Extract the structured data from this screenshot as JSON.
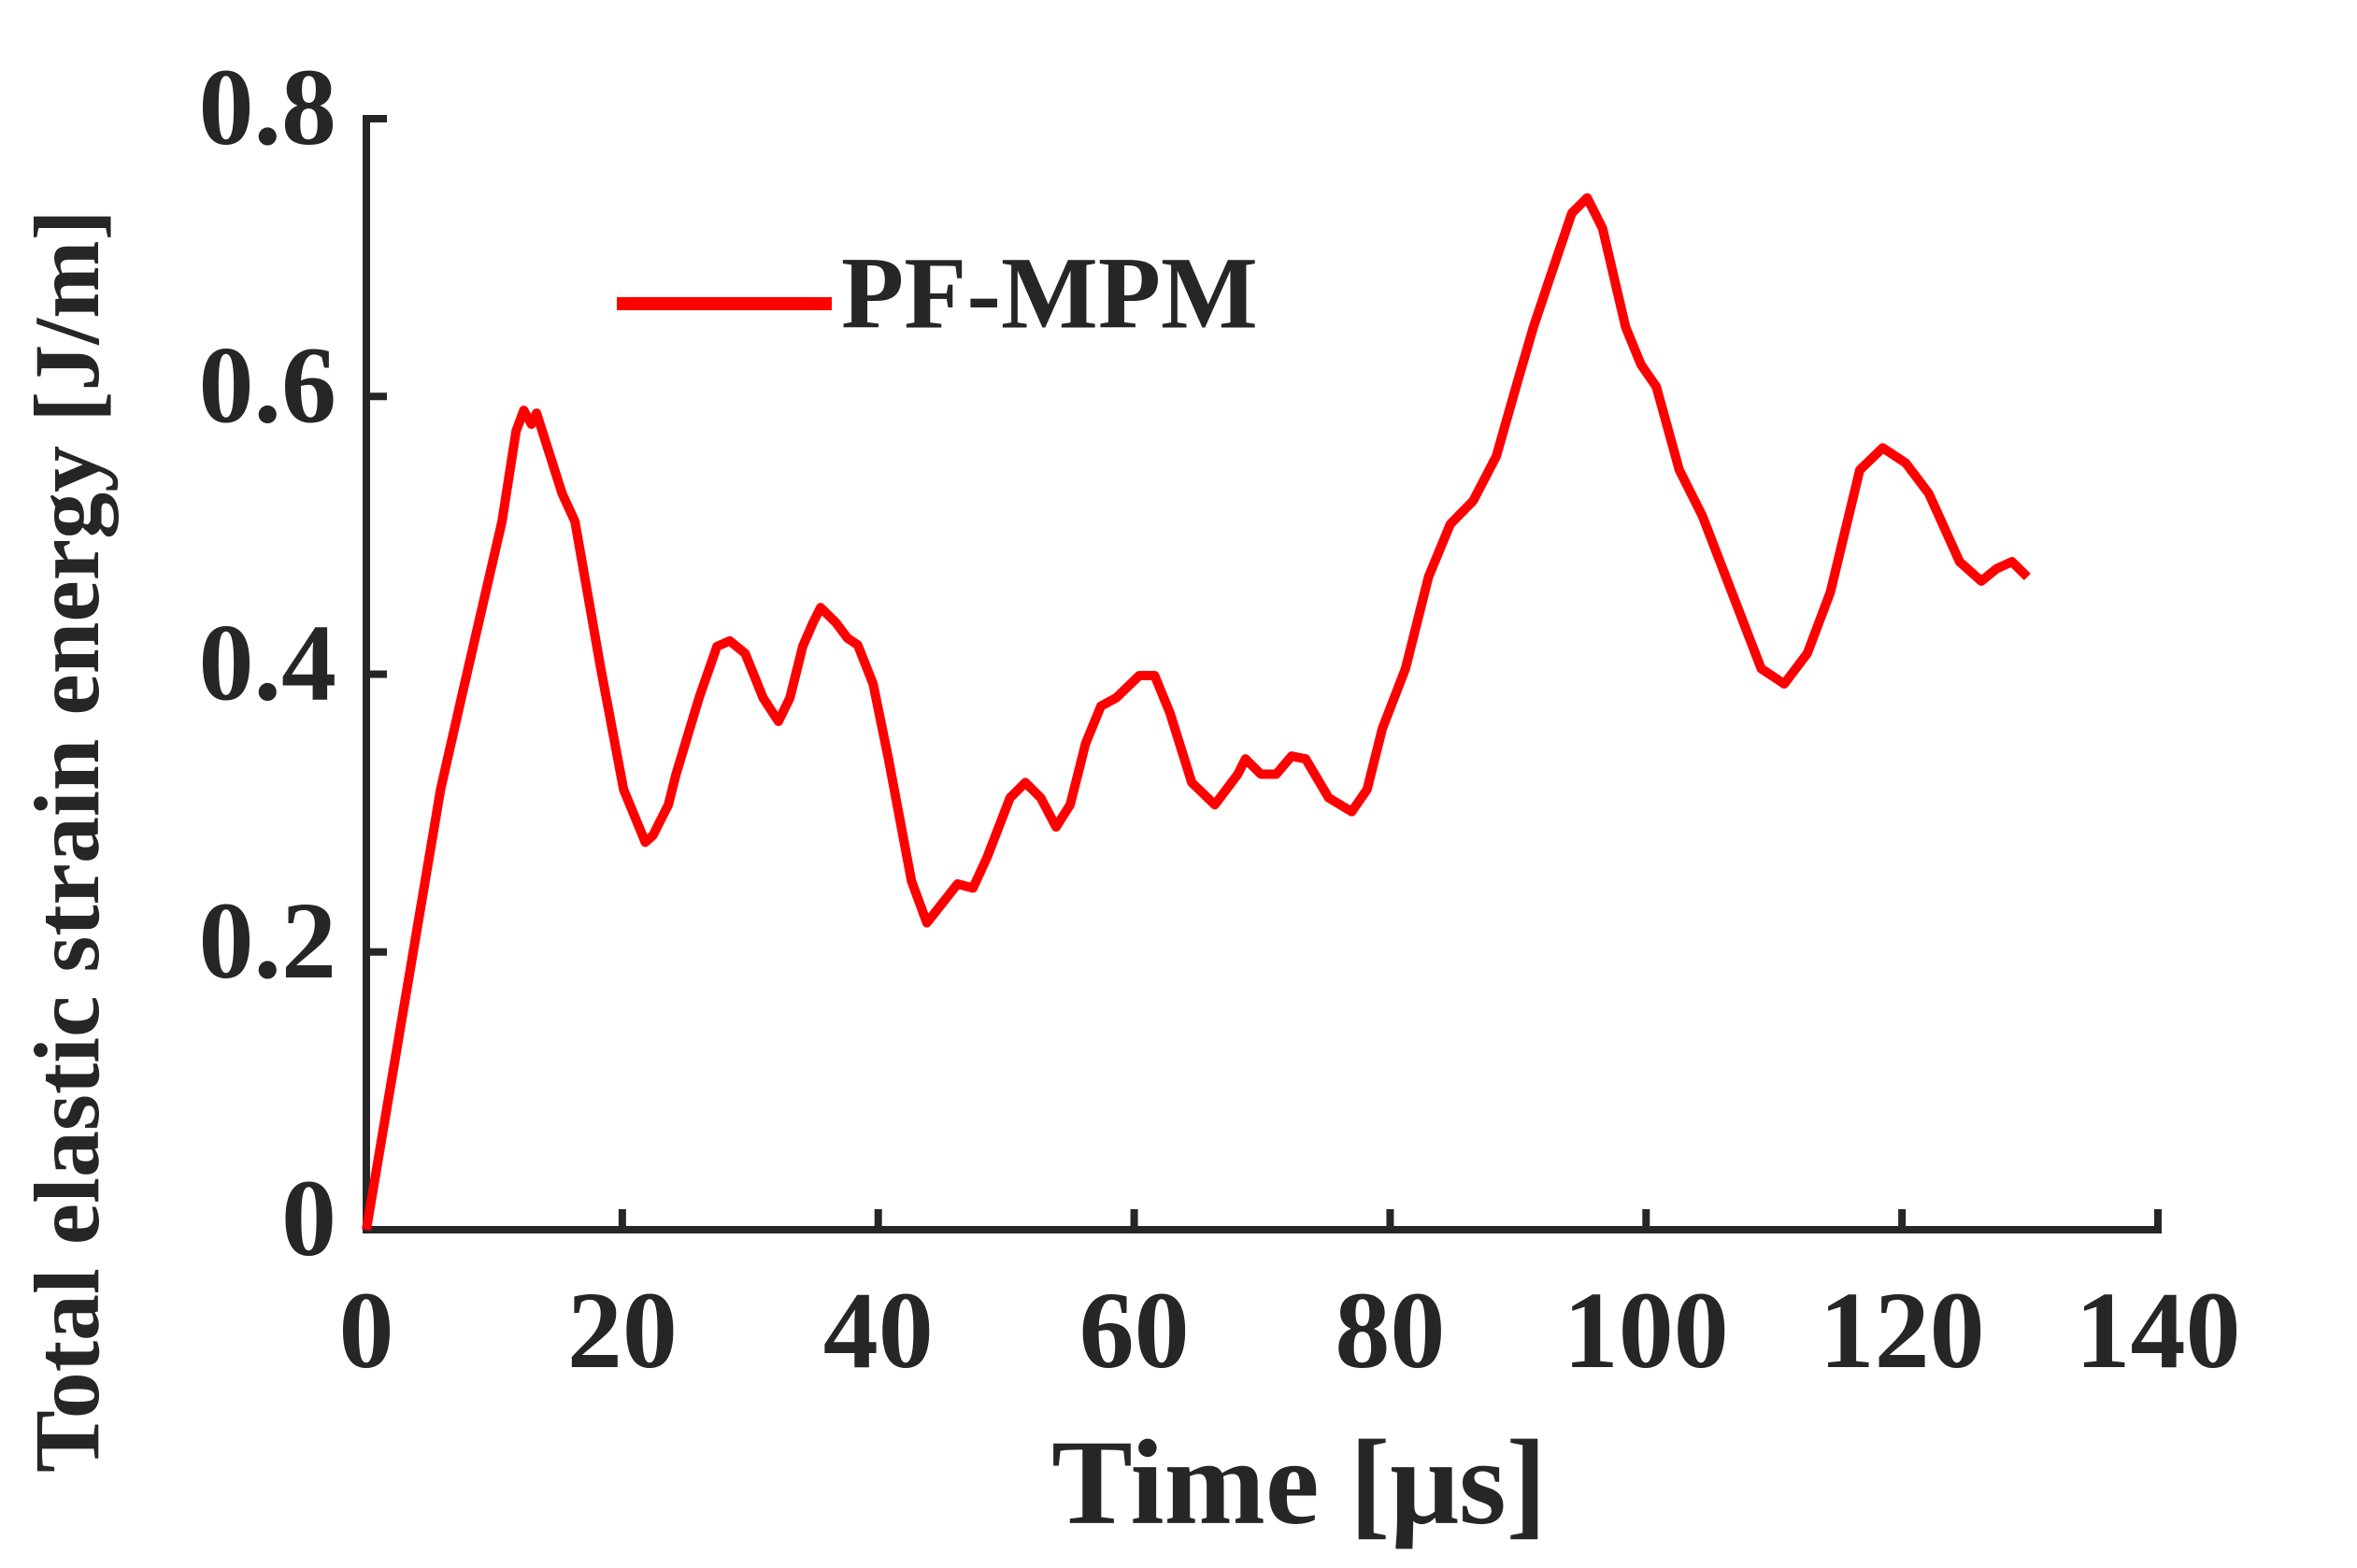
{
  "chart_data": {
    "type": "line",
    "xlabel": "Time [μs]",
    "ylabel": "Total elastic strain energy [J/m]",
    "x": [
      0,
      5.8,
      7.6,
      10.6,
      11.7,
      12.3,
      12.9,
      13.3,
      15.3,
      16.3,
      18.3,
      20.1,
      21.8,
      22.4,
      23,
      23.6,
      24.2,
      26,
      27.4,
      28.4,
      29.6,
      31,
      32.2,
      33.1,
      34.1,
      34.9,
      35.5,
      36.7,
      37.6,
      38.4,
      39.6,
      40.8,
      42.6,
      43.8,
      45,
      46.2,
      47.4,
      48.5,
      50.3,
      51.5,
      52.7,
      53.9,
      55,
      56.2,
      57.4,
      58.6,
      60.4,
      61.6,
      62.8,
      64.5,
      66.3,
      68.1,
      68.7,
      69.9,
      71.1,
      72.3,
      73.4,
      75.2,
      77,
      78.2,
      79.4,
      81.2,
      83,
      84.7,
      86.5,
      88.3,
      90,
      91.2,
      92.4,
      94.2,
      95.4,
      96.6,
      98.4,
      99.6,
      100.8,
      102.6,
      104.4,
      106.7,
      109,
      110.8,
      112.6,
      114.4,
      116.7,
      118.5,
      120.3,
      122.1,
      124.5,
      126.2,
      127.4,
      128.6,
      129.8
    ],
    "series": [
      {
        "name": "PF-MPM",
        "color": "#ff0000",
        "values": [
          0,
          0.317,
          0.39,
          0.51,
          0.575,
          0.59,
          0.58,
          0.588,
          0.53,
          0.51,
          0.405,
          0.317,
          0.279,
          0.284,
          0.295,
          0.306,
          0.328,
          0.383,
          0.42,
          0.424,
          0.415,
          0.383,
          0.366,
          0.383,
          0.42,
          0.437,
          0.448,
          0.437,
          0.426,
          0.421,
          0.393,
          0.339,
          0.251,
          0.221,
          0.235,
          0.249,
          0.246,
          0.268,
          0.311,
          0.322,
          0.311,
          0.29,
          0.306,
          0.35,
          0.377,
          0.383,
          0.399,
          0.399,
          0.372,
          0.322,
          0.306,
          0.328,
          0.339,
          0.328,
          0.328,
          0.341,
          0.339,
          0.311,
          0.301,
          0.317,
          0.361,
          0.404,
          0.47,
          0.508,
          0.525,
          0.557,
          0.612,
          0.65,
          0.683,
          0.732,
          0.743,
          0.721,
          0.65,
          0.623,
          0.607,
          0.547,
          0.514,
          0.459,
          0.404,
          0.393,
          0.415,
          0.459,
          0.547,
          0.563,
          0.552,
          0.53,
          0.481,
          0.467,
          0.476,
          0.481,
          0.47
        ]
      }
    ],
    "xlim": [
      0,
      140
    ],
    "xticks": [
      0,
      20,
      40,
      60,
      80,
      100,
      120,
      140
    ],
    "ylim": [
      0,
      0.8
    ],
    "yticks": [
      0,
      0.2,
      0.4,
      0.6,
      0.8
    ],
    "legend": "upper left"
  }
}
